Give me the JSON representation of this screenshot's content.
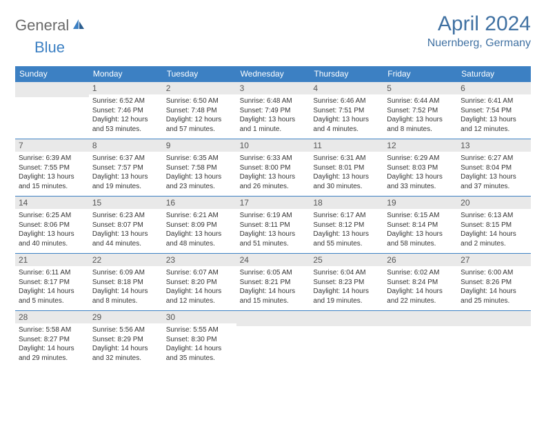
{
  "logo": {
    "general": "General",
    "blue": "Blue"
  },
  "title": "April 2024",
  "subtitle": "Nuernberg, Germany",
  "colors": {
    "header_bg": "#3c80c3",
    "title_color": "#4071a2",
    "daybar_bg": "#e9e9e9",
    "week_border": "#3c80c3",
    "text": "#333333",
    "logo_gray": "#6a6a6a",
    "logo_blue": "#3c80c3"
  },
  "weekdays": [
    "Sunday",
    "Monday",
    "Tuesday",
    "Wednesday",
    "Thursday",
    "Friday",
    "Saturday"
  ],
  "weeks": [
    [
      {
        "blank": true
      },
      {
        "num": "1",
        "sunrise": "Sunrise: 6:52 AM",
        "sunset": "Sunset: 7:46 PM",
        "daylight1": "Daylight: 12 hours",
        "daylight2": "and 53 minutes."
      },
      {
        "num": "2",
        "sunrise": "Sunrise: 6:50 AM",
        "sunset": "Sunset: 7:48 PM",
        "daylight1": "Daylight: 12 hours",
        "daylight2": "and 57 minutes."
      },
      {
        "num": "3",
        "sunrise": "Sunrise: 6:48 AM",
        "sunset": "Sunset: 7:49 PM",
        "daylight1": "Daylight: 13 hours",
        "daylight2": "and 1 minute."
      },
      {
        "num": "4",
        "sunrise": "Sunrise: 6:46 AM",
        "sunset": "Sunset: 7:51 PM",
        "daylight1": "Daylight: 13 hours",
        "daylight2": "and 4 minutes."
      },
      {
        "num": "5",
        "sunrise": "Sunrise: 6:44 AM",
        "sunset": "Sunset: 7:52 PM",
        "daylight1": "Daylight: 13 hours",
        "daylight2": "and 8 minutes."
      },
      {
        "num": "6",
        "sunrise": "Sunrise: 6:41 AM",
        "sunset": "Sunset: 7:54 PM",
        "daylight1": "Daylight: 13 hours",
        "daylight2": "and 12 minutes."
      }
    ],
    [
      {
        "num": "7",
        "sunrise": "Sunrise: 6:39 AM",
        "sunset": "Sunset: 7:55 PM",
        "daylight1": "Daylight: 13 hours",
        "daylight2": "and 15 minutes."
      },
      {
        "num": "8",
        "sunrise": "Sunrise: 6:37 AM",
        "sunset": "Sunset: 7:57 PM",
        "daylight1": "Daylight: 13 hours",
        "daylight2": "and 19 minutes."
      },
      {
        "num": "9",
        "sunrise": "Sunrise: 6:35 AM",
        "sunset": "Sunset: 7:58 PM",
        "daylight1": "Daylight: 13 hours",
        "daylight2": "and 23 minutes."
      },
      {
        "num": "10",
        "sunrise": "Sunrise: 6:33 AM",
        "sunset": "Sunset: 8:00 PM",
        "daylight1": "Daylight: 13 hours",
        "daylight2": "and 26 minutes."
      },
      {
        "num": "11",
        "sunrise": "Sunrise: 6:31 AM",
        "sunset": "Sunset: 8:01 PM",
        "daylight1": "Daylight: 13 hours",
        "daylight2": "and 30 minutes."
      },
      {
        "num": "12",
        "sunrise": "Sunrise: 6:29 AM",
        "sunset": "Sunset: 8:03 PM",
        "daylight1": "Daylight: 13 hours",
        "daylight2": "and 33 minutes."
      },
      {
        "num": "13",
        "sunrise": "Sunrise: 6:27 AM",
        "sunset": "Sunset: 8:04 PM",
        "daylight1": "Daylight: 13 hours",
        "daylight2": "and 37 minutes."
      }
    ],
    [
      {
        "num": "14",
        "sunrise": "Sunrise: 6:25 AM",
        "sunset": "Sunset: 8:06 PM",
        "daylight1": "Daylight: 13 hours",
        "daylight2": "and 40 minutes."
      },
      {
        "num": "15",
        "sunrise": "Sunrise: 6:23 AM",
        "sunset": "Sunset: 8:07 PM",
        "daylight1": "Daylight: 13 hours",
        "daylight2": "and 44 minutes."
      },
      {
        "num": "16",
        "sunrise": "Sunrise: 6:21 AM",
        "sunset": "Sunset: 8:09 PM",
        "daylight1": "Daylight: 13 hours",
        "daylight2": "and 48 minutes."
      },
      {
        "num": "17",
        "sunrise": "Sunrise: 6:19 AM",
        "sunset": "Sunset: 8:11 PM",
        "daylight1": "Daylight: 13 hours",
        "daylight2": "and 51 minutes."
      },
      {
        "num": "18",
        "sunrise": "Sunrise: 6:17 AM",
        "sunset": "Sunset: 8:12 PM",
        "daylight1": "Daylight: 13 hours",
        "daylight2": "and 55 minutes."
      },
      {
        "num": "19",
        "sunrise": "Sunrise: 6:15 AM",
        "sunset": "Sunset: 8:14 PM",
        "daylight1": "Daylight: 13 hours",
        "daylight2": "and 58 minutes."
      },
      {
        "num": "20",
        "sunrise": "Sunrise: 6:13 AM",
        "sunset": "Sunset: 8:15 PM",
        "daylight1": "Daylight: 14 hours",
        "daylight2": "and 2 minutes."
      }
    ],
    [
      {
        "num": "21",
        "sunrise": "Sunrise: 6:11 AM",
        "sunset": "Sunset: 8:17 PM",
        "daylight1": "Daylight: 14 hours",
        "daylight2": "and 5 minutes."
      },
      {
        "num": "22",
        "sunrise": "Sunrise: 6:09 AM",
        "sunset": "Sunset: 8:18 PM",
        "daylight1": "Daylight: 14 hours",
        "daylight2": "and 8 minutes."
      },
      {
        "num": "23",
        "sunrise": "Sunrise: 6:07 AM",
        "sunset": "Sunset: 8:20 PM",
        "daylight1": "Daylight: 14 hours",
        "daylight2": "and 12 minutes."
      },
      {
        "num": "24",
        "sunrise": "Sunrise: 6:05 AM",
        "sunset": "Sunset: 8:21 PM",
        "daylight1": "Daylight: 14 hours",
        "daylight2": "and 15 minutes."
      },
      {
        "num": "25",
        "sunrise": "Sunrise: 6:04 AM",
        "sunset": "Sunset: 8:23 PM",
        "daylight1": "Daylight: 14 hours",
        "daylight2": "and 19 minutes."
      },
      {
        "num": "26",
        "sunrise": "Sunrise: 6:02 AM",
        "sunset": "Sunset: 8:24 PM",
        "daylight1": "Daylight: 14 hours",
        "daylight2": "and 22 minutes."
      },
      {
        "num": "27",
        "sunrise": "Sunrise: 6:00 AM",
        "sunset": "Sunset: 8:26 PM",
        "daylight1": "Daylight: 14 hours",
        "daylight2": "and 25 minutes."
      }
    ],
    [
      {
        "num": "28",
        "sunrise": "Sunrise: 5:58 AM",
        "sunset": "Sunset: 8:27 PM",
        "daylight1": "Daylight: 14 hours",
        "daylight2": "and 29 minutes."
      },
      {
        "num": "29",
        "sunrise": "Sunrise: 5:56 AM",
        "sunset": "Sunset: 8:29 PM",
        "daylight1": "Daylight: 14 hours",
        "daylight2": "and 32 minutes."
      },
      {
        "num": "30",
        "sunrise": "Sunrise: 5:55 AM",
        "sunset": "Sunset: 8:30 PM",
        "daylight1": "Daylight: 14 hours",
        "daylight2": "and 35 minutes."
      },
      {
        "blank": true
      },
      {
        "blank": true
      },
      {
        "blank": true
      },
      {
        "blank": true
      }
    ]
  ]
}
